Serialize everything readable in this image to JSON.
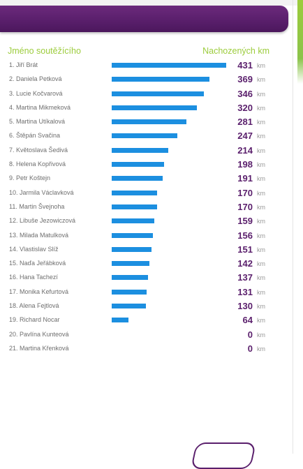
{
  "header": {
    "col_name_label": "Jméno soutěžícího",
    "col_km_label": "Nachozených km"
  },
  "unit": "km",
  "max_value": 431,
  "colors": {
    "header_purple": "#5a1f6c",
    "bar_blue": "#1c8fe0",
    "label_green": "#9ccc3c",
    "value_purple": "#5a1f6c"
  },
  "rows": [
    {
      "name": "1. Jiří Brát",
      "value": "431",
      "num": 431
    },
    {
      "name": "2. Daniela Petková",
      "value": "369",
      "num": 369
    },
    {
      "name": "3. Lucie Kočvarová",
      "value": "346",
      "num": 346
    },
    {
      "name": "4. Martina Mikmeková",
      "value": "320",
      "num": 320
    },
    {
      "name": "5. Martina Utíkalová",
      "value": "281",
      "num": 281
    },
    {
      "name": "6. Štěpán Svačina",
      "value": "247",
      "num": 247
    },
    {
      "name": "7. Květoslava Šedivá",
      "value": "214",
      "num": 214
    },
    {
      "name": "8. Helena Kopřivová",
      "value": "198",
      "num": 198
    },
    {
      "name": "9. Petr Koštejn",
      "value": "191",
      "num": 191
    },
    {
      "name": "10. Jarmila Václavková",
      "value": "170",
      "num": 170
    },
    {
      "name": "11. Martin Švejnoha",
      "value": "170",
      "num": 170
    },
    {
      "name": "12. Libuše Jezowiczová",
      "value": "159",
      "num": 159
    },
    {
      "name": "13. Milada Matulková",
      "value": "156",
      "num": 156
    },
    {
      "name": "14. Vlastislav Slíž",
      "value": "151",
      "num": 151
    },
    {
      "name": "15. Naďa Jeřábková",
      "value": "142",
      "num": 142
    },
    {
      "name": "16. Hana Tachezí",
      "value": "137",
      "num": 137
    },
    {
      "name": "17. Monika Kefurtová",
      "value": "131",
      "num": 131
    },
    {
      "name": "18. Alena Fejtlová",
      "value": "130",
      "num": 130
    },
    {
      "name": "19. Richard Nocar",
      "value": "64",
      "num": 64
    },
    {
      "name": "20. Pavlína Kunteová",
      "value": "0",
      "num": 0
    },
    {
      "name": "21. Martina Křenková",
      "value": "0",
      "num": 0
    }
  ]
}
